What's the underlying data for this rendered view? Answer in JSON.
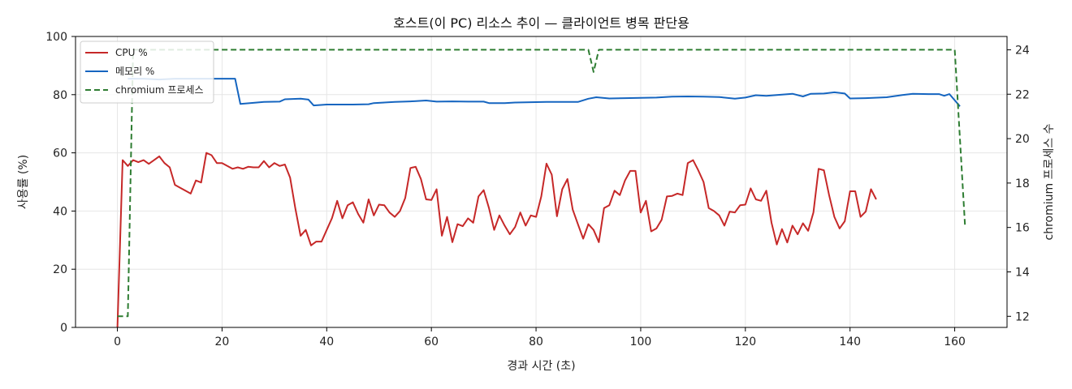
{
  "chart_data": {
    "type": "line",
    "title": "호스트(이 PC) 리소스 추이 — 클라이언트 병목 판단용",
    "xlabel": "경과 시간 (초)",
    "ylabel": "사용률 (%)",
    "y2label": "chromium 프로세스 수",
    "xlim": [
      -8,
      170
    ],
    "ylim": [
      0,
      100
    ],
    "y2lim": [
      11.5,
      24.6
    ],
    "x_ticks": [
      0,
      20,
      40,
      60,
      80,
      100,
      120,
      140,
      160
    ],
    "y_ticks": [
      0,
      20,
      40,
      60,
      80,
      100
    ],
    "y2_ticks": [
      12,
      14,
      16,
      18,
      20,
      22,
      24
    ],
    "grid": true,
    "legend_position": "top-left",
    "series": [
      {
        "name": "CPU %",
        "axis": "left",
        "color": "#c62828",
        "dash": "solid",
        "points": [
          [
            0,
            0
          ],
          [
            1,
            57.5
          ],
          [
            2,
            55.5
          ],
          [
            3,
            57.5
          ],
          [
            4,
            56.8
          ],
          [
            5,
            57.5
          ],
          [
            6,
            56.2
          ],
          [
            7,
            57.5
          ],
          [
            8,
            58.8
          ],
          [
            9,
            56.5
          ],
          [
            10,
            55
          ],
          [
            11,
            49
          ],
          [
            12,
            48
          ],
          [
            13,
            47
          ],
          [
            14,
            46
          ],
          [
            15,
            50.5
          ],
          [
            16,
            49.8
          ],
          [
            17,
            60
          ],
          [
            18,
            59.2
          ],
          [
            19,
            56.5
          ],
          [
            20,
            56.5
          ],
          [
            21,
            55.5
          ],
          [
            22,
            54.5
          ],
          [
            23,
            55
          ],
          [
            24,
            54.5
          ],
          [
            25,
            55.2
          ],
          [
            26,
            55
          ],
          [
            27,
            55
          ],
          [
            28,
            57.2
          ],
          [
            29,
            55
          ],
          [
            30,
            56.5
          ],
          [
            31,
            55.5
          ],
          [
            32,
            56
          ],
          [
            33,
            51.5
          ],
          [
            34,
            41
          ],
          [
            35,
            31.5
          ],
          [
            36,
            33.5
          ],
          [
            37,
            28.2
          ],
          [
            38,
            29.5
          ],
          [
            39,
            29.5
          ],
          [
            40,
            33.5
          ],
          [
            41,
            37.5
          ],
          [
            42,
            43.5
          ],
          [
            43,
            37.5
          ],
          [
            44,
            42
          ],
          [
            45,
            43
          ],
          [
            46,
            39
          ],
          [
            47,
            36
          ],
          [
            48,
            44
          ],
          [
            49,
            38.5
          ],
          [
            50,
            42.2
          ],
          [
            51,
            42
          ],
          [
            52,
            39.5
          ],
          [
            53,
            38
          ],
          [
            54,
            40
          ],
          [
            55,
            44.5
          ],
          [
            56,
            54.8
          ],
          [
            57,
            55.2
          ],
          [
            58,
            51
          ],
          [
            59,
            44
          ],
          [
            60,
            43.8
          ],
          [
            61,
            47.5
          ],
          [
            62,
            31.5
          ],
          [
            63,
            38
          ],
          [
            64,
            29.3
          ],
          [
            65,
            35.5
          ],
          [
            66,
            34.8
          ],
          [
            67,
            37.5
          ],
          [
            68,
            36
          ],
          [
            69,
            45
          ],
          [
            70,
            47.2
          ],
          [
            71,
            41
          ],
          [
            72,
            33.5
          ],
          [
            73,
            38.5
          ],
          [
            74,
            35
          ],
          [
            75,
            32
          ],
          [
            76,
            34.5
          ],
          [
            77,
            39.5
          ],
          [
            78,
            35
          ],
          [
            79,
            38.5
          ],
          [
            80,
            38
          ],
          [
            81,
            45
          ],
          [
            82,
            56.3
          ],
          [
            83,
            52.5
          ],
          [
            84,
            38.2
          ],
          [
            85,
            47.5
          ],
          [
            86,
            51
          ],
          [
            87,
            40.5
          ],
          [
            88,
            35.5
          ],
          [
            89,
            30.5
          ],
          [
            90,
            35.5
          ],
          [
            91,
            33.5
          ],
          [
            92,
            29.3
          ],
          [
            93,
            41
          ],
          [
            94,
            42
          ],
          [
            95,
            47
          ],
          [
            96,
            45.5
          ],
          [
            97,
            50.5
          ],
          [
            98,
            53.8
          ],
          [
            99,
            53.8
          ],
          [
            100,
            39.5
          ],
          [
            101,
            43.5
          ],
          [
            102,
            33
          ],
          [
            103,
            34
          ],
          [
            104,
            37
          ],
          [
            105,
            45
          ],
          [
            106,
            45.2
          ],
          [
            107,
            46
          ],
          [
            108,
            45.5
          ],
          [
            109,
            56.5
          ],
          [
            110,
            57.5
          ],
          [
            111,
            54
          ],
          [
            112,
            50
          ],
          [
            113,
            41
          ],
          [
            114,
            40
          ],
          [
            115,
            38.5
          ],
          [
            116,
            35
          ],
          [
            117,
            39.8
          ],
          [
            118,
            39.5
          ],
          [
            119,
            42
          ],
          [
            120,
            42.2
          ],
          [
            121,
            47.8
          ],
          [
            122,
            44
          ],
          [
            123,
            43.5
          ],
          [
            124,
            47
          ],
          [
            125,
            36
          ],
          [
            126,
            28.5
          ],
          [
            127,
            33.8
          ],
          [
            128,
            29.2
          ],
          [
            129,
            35
          ],
          [
            130,
            32
          ],
          [
            131,
            35.8
          ],
          [
            132,
            33.2
          ],
          [
            133,
            39.5
          ],
          [
            134,
            54.5
          ],
          [
            135,
            54
          ],
          [
            136,
            45.5
          ],
          [
            137,
            38
          ],
          [
            138,
            34
          ],
          [
            139,
            36.5
          ],
          [
            140,
            46.8
          ],
          [
            141,
            46.8
          ],
          [
            142,
            38
          ],
          [
            143,
            39.8
          ],
          [
            144,
            47.5
          ],
          [
            145,
            44
          ]
        ]
      },
      {
        "name": "메모리 %",
        "axis": "left",
        "color": "#1565c0",
        "dash": "solid",
        "points": [
          [
            2,
            85.5
          ],
          [
            5,
            85.5
          ],
          [
            8,
            85.2
          ],
          [
            11,
            85.5
          ],
          [
            14,
            85.5
          ],
          [
            17,
            85.5
          ],
          [
            22.5,
            85.5
          ],
          [
            23.5,
            76.8
          ],
          [
            26,
            77.2
          ],
          [
            28,
            77.5
          ],
          [
            31,
            77.6
          ],
          [
            32,
            78.4
          ],
          [
            35,
            78.6
          ],
          [
            36.5,
            78.3
          ],
          [
            37.5,
            76.3
          ],
          [
            40,
            76.6
          ],
          [
            44,
            76.6
          ],
          [
            45,
            76.6
          ],
          [
            48,
            76.7
          ],
          [
            49,
            77.1
          ],
          [
            53,
            77.5
          ],
          [
            56,
            77.7
          ],
          [
            59,
            78
          ],
          [
            61,
            77.6
          ],
          [
            64,
            77.7
          ],
          [
            67,
            77.6
          ],
          [
            70,
            77.6
          ],
          [
            71,
            77.1
          ],
          [
            74,
            77.1
          ],
          [
            76,
            77.3
          ],
          [
            79,
            77.4
          ],
          [
            82,
            77.5
          ],
          [
            85,
            77.5
          ],
          [
            88,
            77.5
          ],
          [
            90,
            78.6
          ],
          [
            91.5,
            79.1
          ],
          [
            94,
            78.7
          ],
          [
            97,
            78.8
          ],
          [
            100,
            78.9
          ],
          [
            103,
            79
          ],
          [
            106,
            79.3
          ],
          [
            109,
            79.4
          ],
          [
            112,
            79.3
          ],
          [
            115,
            79.2
          ],
          [
            118,
            78.6
          ],
          [
            120,
            79
          ],
          [
            122,
            79.8
          ],
          [
            124,
            79.6
          ],
          [
            126,
            79.9
          ],
          [
            129,
            80.3
          ],
          [
            131,
            79.4
          ],
          [
            132.5,
            80.3
          ],
          [
            135,
            80.4
          ],
          [
            137,
            80.8
          ],
          [
            139,
            80.4
          ],
          [
            140,
            78.7
          ],
          [
            143,
            78.8
          ],
          [
            147,
            79.1
          ],
          [
            150,
            79.9
          ],
          [
            152,
            80.3
          ],
          [
            155,
            80.2
          ],
          [
            157,
            80.2
          ],
          [
            158,
            79.6
          ],
          [
            159,
            80.2
          ],
          [
            161,
            76
          ]
        ]
      },
      {
        "name": "chromium 프로세스",
        "axis": "right",
        "color": "#2e7d32",
        "dash": "dashed",
        "points": [
          [
            0,
            12
          ],
          [
            2,
            12
          ],
          [
            3,
            24
          ],
          [
            90,
            24
          ],
          [
            91,
            23
          ],
          [
            92,
            24
          ],
          [
            160,
            24
          ],
          [
            162,
            16
          ]
        ]
      }
    ]
  }
}
